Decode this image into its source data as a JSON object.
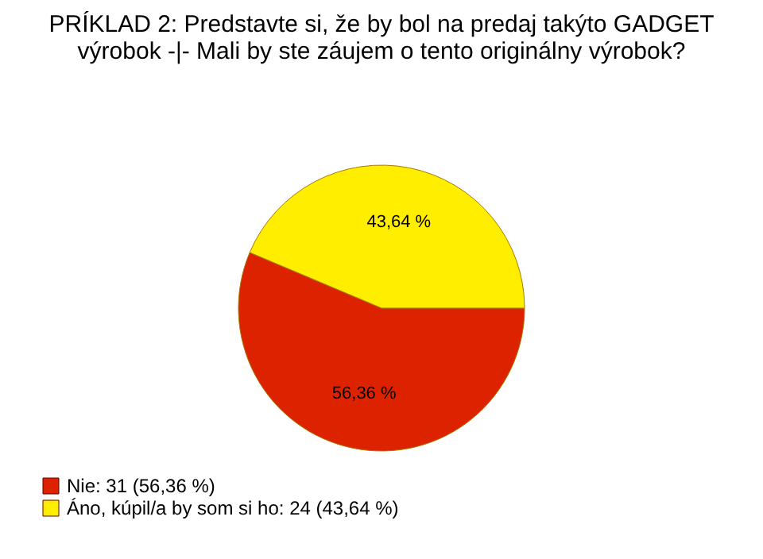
{
  "chart_data": {
    "type": "pie",
    "title": "PRÍKLAD 2: Predstavte si, že by bol na predaj takýto GADGET výrobok -|- Mali by ste záujem o tento originálny výrobok?",
    "categories": [
      "Nie: 31 (56,36 %)",
      "Áno, kúpil/a by som si ho: 24 (43,64 %)"
    ],
    "values": [
      56.36,
      43.64
    ],
    "colors": [
      "#dd2200",
      "#ffee00"
    ],
    "value_labels": [
      "56,36 %",
      "43,64 %"
    ],
    "legend": "bottom left"
  }
}
